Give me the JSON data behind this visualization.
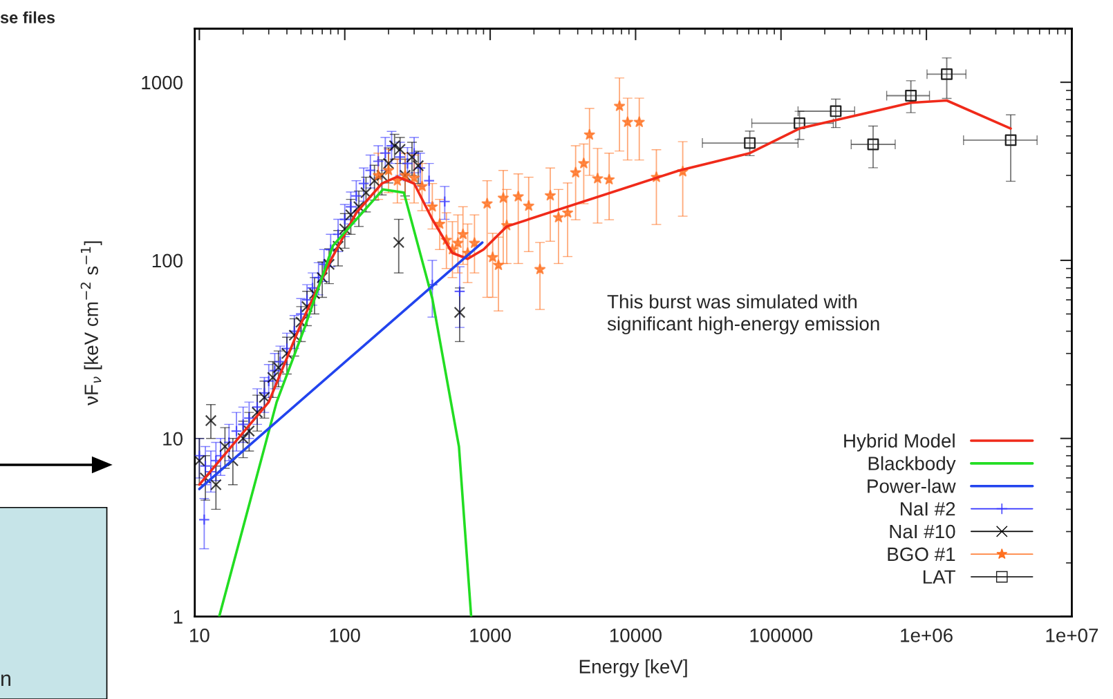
{
  "chart_data": {
    "type": "scatter",
    "xlabel": "Energy [keV]",
    "ylabel": "νF$_{ν}$ [keV cm$^{−2}$ s$^{−1}$]",
    "log": "xy",
    "xlim": [
      9.3,
      10000000
    ],
    "ylim": [
      1,
      2000
    ],
    "xticks": [
      10,
      100,
      1000,
      10000,
      100000,
      {
        "value": 1000000,
        "label": "1e+06"
      },
      {
        "value": 10000000,
        "label": "1e+07"
      }
    ],
    "yticks": [
      1,
      10,
      100,
      1000
    ],
    "grid": false,
    "legend": "bottom right",
    "annotations": [
      "This burst was simulated with\nsignificant high-energy emission",
      "se files",
      "n"
    ],
    "series": [
      {
        "name": "Hybrid Model",
        "type": "line",
        "color": "#f02a1a",
        "marker": "none",
        "line_style": "solid",
        "x": [
          10,
          30,
          50,
          80,
          120,
          180,
          230,
          300,
          400,
          550,
          700,
          900,
          1300,
          20000,
          61000,
          134000,
          782000,
          1380000,
          3800000
        ],
        "values": [
          5.5,
          16,
          44,
          100,
          185,
          270,
          295,
          270,
          170,
          110,
          102,
          115,
          155,
          320,
          400,
          550,
          767,
          790,
          550
        ]
      },
      {
        "name": "Blackbody",
        "type": "line",
        "color": "#22dd22",
        "marker": "none",
        "line_style": "solid",
        "x": [
          13.7,
          34,
          53,
          83,
          183,
          255,
          400,
          610,
          740
        ],
        "values": [
          1,
          16,
          42,
          121,
          250,
          240,
          61,
          9,
          1
        ]
      },
      {
        "name": "Power-law",
        "type": "line",
        "color": "#2244ee",
        "marker": "none",
        "line_style": "solid",
        "x": [
          10,
          883
        ],
        "values": [
          5.2,
          126
        ]
      },
      {
        "name": "NaI #2",
        "color": "#3030ff",
        "marker": "plus",
        "x": [
          10,
          10.8,
          11,
          12,
          13,
          14,
          16,
          18,
          20,
          22,
          25,
          28,
          30,
          33,
          36,
          40,
          45,
          50,
          55,
          60,
          66,
          72,
          80,
          90,
          100,
          110,
          120,
          135,
          150,
          170,
          190,
          210,
          240,
          270,
          300,
          330,
          380,
          400,
          487,
          617
        ],
        "values": [
          8,
          3.5,
          7,
          6.5,
          7.5,
          8,
          9.5,
          11,
          12,
          13,
          15,
          18,
          21,
          24,
          27,
          32,
          40,
          50,
          60,
          70,
          80,
          95,
          115,
          140,
          170,
          200,
          230,
          270,
          320,
          360,
          400,
          440,
          380,
          350,
          400,
          330,
          280,
          73,
          214,
          67
        ],
        "errors": [
          [
            6,
            10
          ],
          [
            2.4,
            4.6
          ],
          [
            5.5,
            9
          ],
          [
            5,
            8.5
          ],
          [
            5.8,
            9.5
          ],
          [
            6.2,
            10
          ],
          [
            7.5,
            12
          ],
          [
            8.5,
            14
          ],
          [
            9.5,
            15
          ],
          [
            10,
            16
          ],
          [
            12,
            19
          ],
          [
            14,
            22
          ],
          [
            17,
            26
          ],
          [
            19,
            30
          ],
          [
            21,
            33
          ],
          [
            26,
            39
          ],
          [
            32,
            49
          ],
          [
            40,
            61
          ],
          [
            48,
            73
          ],
          [
            56,
            85
          ],
          [
            64,
            97
          ],
          [
            76,
            115
          ],
          [
            92,
            140
          ],
          [
            112,
            170
          ],
          [
            136,
            206
          ],
          [
            160,
            242
          ],
          [
            185,
            280
          ],
          [
            215,
            330
          ],
          [
            255,
            390
          ],
          [
            290,
            440
          ],
          [
            320,
            490
          ],
          [
            350,
            530
          ],
          [
            300,
            460
          ],
          [
            280,
            430
          ],
          [
            310,
            490
          ],
          [
            260,
            400
          ],
          [
            210,
            350
          ],
          [
            48,
            100
          ],
          [
            170,
            260
          ],
          [
            42,
            92
          ]
        ]
      },
      {
        "name": "NaI #10",
        "color": "#000000",
        "marker": "cross",
        "x": [
          10,
          11,
          12,
          13,
          15,
          17,
          20,
          22,
          25,
          28,
          32,
          35,
          40,
          45,
          50,
          55,
          62,
          70,
          78,
          90,
          100,
          110,
          125,
          140,
          160,
          180,
          200,
          220,
          235,
          240,
          260,
          290,
          320,
          617
        ],
        "values": [
          7.5,
          6,
          12.6,
          5.5,
          9,
          7.5,
          10,
          11,
          14,
          17,
          22,
          25,
          30,
          38,
          45,
          55,
          65,
          80,
          95,
          120,
          150,
          180,
          200,
          240,
          280,
          300,
          350,
          440,
          126,
          420,
          300,
          380,
          340,
          51
        ],
        "errors": [
          [
            5.5,
            10
          ],
          [
            4.5,
            8
          ],
          [
            10,
            15.5
          ],
          [
            4,
            7
          ],
          [
            6.8,
            11.5
          ],
          [
            5.5,
            10
          ],
          [
            7.8,
            12.5
          ],
          [
            8.5,
            14
          ],
          [
            11,
            17.5
          ],
          [
            13,
            21
          ],
          [
            17,
            27
          ],
          [
            19.5,
            31
          ],
          [
            23,
            37
          ],
          [
            29,
            47
          ],
          [
            35,
            55
          ],
          [
            43,
            67
          ],
          [
            50,
            80
          ],
          [
            62,
            98
          ],
          [
            74,
            116
          ],
          [
            93,
            147
          ],
          [
            117,
            183
          ],
          [
            140,
            220
          ],
          [
            155,
            245
          ],
          [
            187,
            293
          ],
          [
            218,
            342
          ],
          [
            233,
            367
          ],
          [
            272,
            428
          ],
          [
            370,
            510
          ],
          [
            85,
            170
          ],
          [
            350,
            490
          ],
          [
            230,
            370
          ],
          [
            300,
            460
          ],
          [
            270,
            410
          ],
          [
            35,
            70
          ]
        ]
      },
      {
        "name": "BGO #1",
        "color": "#ff7020",
        "marker": "star",
        "x": [
          170,
          200,
          230,
          260,
          300,
          340,
          400,
          450,
          500,
          550,
          600,
          650,
          700,
          780,
          953,
          1040,
          1140,
          1230,
          1300,
          1560,
          1840,
          2200,
          2590,
          2950,
          3410,
          3870,
          4400,
          4820,
          5480,
          6580,
          7750,
          8810,
          10600,
          13900,
          21100
        ],
        "values": [
          300,
          320,
          280,
          300,
          290,
          260,
          200,
          160,
          130,
          115,
          125,
          140,
          110,
          125,
          208,
          104,
          94,
          224,
          157,
          228,
          202,
          89,
          231,
          174,
          185,
          311,
          350,
          507,
          288,
          284,
          734,
          597,
          597,
          293,
          315
        ],
        "errors": [
          [
            220,
            400
          ],
          [
            240,
            420
          ],
          [
            210,
            370
          ],
          [
            220,
            400
          ],
          [
            210,
            390
          ],
          [
            190,
            350
          ],
          [
            150,
            270
          ],
          [
            115,
            220
          ],
          [
            90,
            185
          ],
          [
            80,
            165
          ],
          [
            85,
            180
          ],
          [
            95,
            200
          ],
          [
            75,
            160
          ],
          [
            85,
            180
          ],
          [
            62,
            280
          ],
          [
            62,
            142
          ],
          [
            52,
            135
          ],
          [
            96,
            320
          ],
          [
            96,
            250
          ],
          [
            96,
            306
          ],
          [
            112,
            293
          ],
          [
            53,
            126
          ],
          [
            128,
            330
          ],
          [
            96,
            250
          ],
          [
            105,
            272
          ],
          [
            169,
            440
          ],
          [
            208,
            450
          ],
          [
            300,
            713
          ],
          [
            162,
            425
          ],
          [
            169,
            400
          ],
          [
            411,
            1057
          ],
          [
            366,
            814
          ],
          [
            366,
            814
          ],
          [
            159,
            418
          ],
          [
            177,
            464
          ]
        ]
      },
      {
        "name": "LAT",
        "color": "#202020",
        "marker": "square",
        "x": [
          61000,
          134000,
          238000,
          430000,
          782000,
          1380000,
          3800000
        ],
        "values": [
          456,
          589,
          688,
          448,
          841,
          1110,
          473
        ],
        "errors": [
          [
            387,
            532
          ],
          [
            477,
            687
          ],
          [
            557,
            804
          ],
          [
            331,
            568
          ],
          [
            675,
            1020
          ],
          [
            811,
            1370
          ],
          [
            278,
            656
          ]
        ],
        "xerrors": [
          [
            28800,
            131000
          ],
          [
            63000,
            229000
          ],
          [
            131000,
            321000
          ],
          [
            304000,
            610000
          ],
          [
            533000,
            1050000
          ],
          [
            1010000,
            1870000
          ],
          [
            1800000,
            5770000
          ]
        ]
      }
    ]
  }
}
